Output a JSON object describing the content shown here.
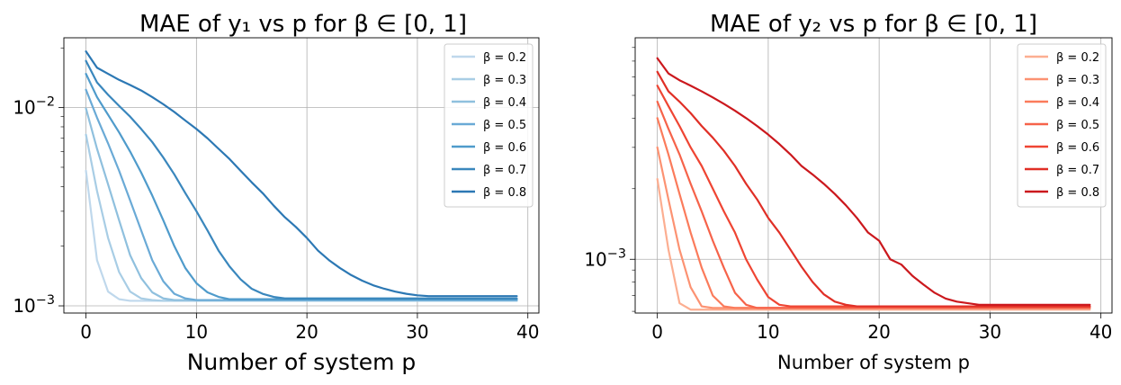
{
  "chart_data": [
    {
      "type": "line",
      "title": "MAE of y₁ vs p for β ∈ [0, 1]",
      "xlabel": "Number of system p",
      "ylabel": "",
      "yscale": "log",
      "xlim": [
        -2,
        41
      ],
      "ylim": [
        0.00092,
        0.0225
      ],
      "xticks": [
        0,
        10,
        20,
        30,
        40
      ],
      "yticks": [
        {
          "value": 0.001,
          "base": "10",
          "exp": "−3"
        },
        {
          "value": 0.01,
          "base": "10",
          "exp": "−2"
        }
      ],
      "grid": true,
      "legend_position": "top-right",
      "series": [
        {
          "name": "β = 0.2",
          "color": "#bfd8ec",
          "values": [
            0.0048,
            0.0017,
            0.00118,
            0.00108,
            0.00106,
            0.00106,
            0.00106,
            0.00106,
            0.00106,
            0.00106,
            0.00106,
            0.00106,
            0.00106,
            0.00106,
            0.00106,
            0.00106,
            0.00106,
            0.00106,
            0.00106,
            0.00106,
            0.00106,
            0.00106,
            0.00106,
            0.00106,
            0.00106,
            0.00106,
            0.00106,
            0.00106,
            0.00106,
            0.00106,
            0.00106,
            0.00106,
            0.00106,
            0.00106,
            0.00106,
            0.00106,
            0.00106,
            0.00106,
            0.00106,
            0.00106
          ]
        },
        {
          "name": "β = 0.3",
          "color": "#a8cde5",
          "values": [
            0.0073,
            0.0038,
            0.0022,
            0.00148,
            0.00118,
            0.00109,
            0.00107,
            0.00106,
            0.00106,
            0.00106,
            0.00106,
            0.00106,
            0.00106,
            0.00106,
            0.00106,
            0.00106,
            0.00106,
            0.00106,
            0.00106,
            0.00106,
            0.00106,
            0.00106,
            0.00106,
            0.00106,
            0.00106,
            0.00106,
            0.00106,
            0.00106,
            0.00106,
            0.00106,
            0.00106,
            0.00106,
            0.00106,
            0.00106,
            0.00106,
            0.00106,
            0.00106,
            0.00106,
            0.00106,
            0.00106
          ]
        },
        {
          "name": "β = 0.4",
          "color": "#8fc0de",
          "values": [
            0.0099,
            0.0062,
            0.0041,
            0.0027,
            0.0018,
            0.00138,
            0.00117,
            0.00109,
            0.00107,
            0.00107,
            0.00107,
            0.00107,
            0.00107,
            0.00107,
            0.00107,
            0.00107,
            0.00107,
            0.00107,
            0.00107,
            0.00107,
            0.00107,
            0.00107,
            0.00107,
            0.00107,
            0.00107,
            0.00107,
            0.00107,
            0.00107,
            0.00107,
            0.00107,
            0.00107,
            0.00107,
            0.00107,
            0.00107,
            0.00107,
            0.00107,
            0.00107,
            0.00107,
            0.00107,
            0.00107
          ]
        },
        {
          "name": "β = 0.5",
          "color": "#6aaad6",
          "values": [
            0.0123,
            0.0089,
            0.0066,
            0.0048,
            0.0034,
            0.0024,
            0.0017,
            0.00133,
            0.00115,
            0.00109,
            0.00107,
            0.00107,
            0.00107,
            0.00107,
            0.00107,
            0.00107,
            0.00107,
            0.00107,
            0.00107,
            0.00107,
            0.00107,
            0.00107,
            0.00107,
            0.00107,
            0.00107,
            0.00107,
            0.00107,
            0.00107,
            0.00107,
            0.00107,
            0.00107,
            0.00107,
            0.00107,
            0.00107,
            0.00107,
            0.00107,
            0.00107,
            0.00107,
            0.00107,
            0.00107
          ]
        },
        {
          "name": "β = 0.6",
          "color": "#4f9bcb",
          "values": [
            0.0148,
            0.0113,
            0.0092,
            0.0075,
            0.006,
            0.0047,
            0.0036,
            0.0027,
            0.002,
            0.00155,
            0.0013,
            0.00117,
            0.00111,
            0.00108,
            0.00108,
            0.00108,
            0.00108,
            0.00108,
            0.00108,
            0.00108,
            0.00108,
            0.00108,
            0.00108,
            0.00108,
            0.00108,
            0.00108,
            0.00108,
            0.00108,
            0.00108,
            0.00108,
            0.00108,
            0.00108,
            0.00108,
            0.00108,
            0.00108,
            0.00108,
            0.00108,
            0.00108,
            0.00108,
            0.00108
          ]
        },
        {
          "name": "β = 0.7",
          "color": "#3a87bd",
          "values": [
            0.0172,
            0.0134,
            0.0116,
            0.0102,
            0.009,
            0.0078,
            0.0067,
            0.0056,
            0.0046,
            0.0037,
            0.003,
            0.0024,
            0.0019,
            0.00158,
            0.00136,
            0.00122,
            0.00115,
            0.00111,
            0.00109,
            0.00109,
            0.00109,
            0.00109,
            0.00109,
            0.00109,
            0.00109,
            0.00109,
            0.00109,
            0.00109,
            0.00109,
            0.00109,
            0.00109,
            0.00109,
            0.00109,
            0.00109,
            0.00109,
            0.00109,
            0.00109,
            0.00109,
            0.00109,
            0.00109
          ]
        },
        {
          "name": "β = 0.8",
          "color": "#2c78b4",
          "values": [
            0.0192,
            0.0159,
            0.0148,
            0.0138,
            0.013,
            0.0122,
            0.0113,
            0.0104,
            0.0095,
            0.0086,
            0.0078,
            0.007,
            0.0062,
            0.0055,
            0.0048,
            0.0042,
            0.0037,
            0.0032,
            0.0028,
            0.0025,
            0.0022,
            0.0019,
            0.0017,
            0.00155,
            0.00143,
            0.00134,
            0.00127,
            0.00122,
            0.00118,
            0.00115,
            0.00113,
            0.00112,
            0.00112,
            0.00112,
            0.00112,
            0.00112,
            0.00112,
            0.00112,
            0.00112,
            0.00112
          ]
        }
      ]
    },
    {
      "type": "line",
      "title": "MAE of y₂ vs p for β ∈ [0, 1]",
      "xlabel": "Number of system p",
      "ylabel": "",
      "yscale": "log",
      "xlim": [
        -2,
        41
      ],
      "ylim": [
        0.00059,
        0.0088
      ],
      "xticks": [
        0,
        10,
        20,
        30,
        40
      ],
      "yticks": [
        {
          "value": 0.001,
          "base": "10",
          "exp": "−3"
        }
      ],
      "grid": true,
      "legend_position": "top-right",
      "series": [
        {
          "name": "β = 0.2",
          "color": "#fcae91",
          "values": [
            0.0022,
            0.0011,
            0.00065,
            0.00061,
            0.00061,
            0.00061,
            0.00061,
            0.00061,
            0.00061,
            0.00061,
            0.00061,
            0.00061,
            0.00061,
            0.00061,
            0.00061,
            0.00061,
            0.00061,
            0.00061,
            0.00061,
            0.00061,
            0.00061,
            0.00061,
            0.00061,
            0.00061,
            0.00061,
            0.00061,
            0.00061,
            0.00061,
            0.00061,
            0.00061,
            0.00061,
            0.00061,
            0.00061,
            0.00061,
            0.00061,
            0.00061,
            0.00061,
            0.00061,
            0.00061,
            0.00061
          ]
        },
        {
          "name": "β = 0.3",
          "color": "#fc9272",
          "values": [
            0.003,
            0.0018,
            0.0011,
            0.00076,
            0.00063,
            0.00062,
            0.00062,
            0.00062,
            0.00062,
            0.00062,
            0.00062,
            0.00062,
            0.00062,
            0.00062,
            0.00062,
            0.00062,
            0.00062,
            0.00062,
            0.00062,
            0.00062,
            0.00062,
            0.00062,
            0.00062,
            0.00062,
            0.00062,
            0.00062,
            0.00062,
            0.00062,
            0.00062,
            0.00062,
            0.00062,
            0.00062,
            0.00062,
            0.00062,
            0.00062,
            0.00062,
            0.00062,
            0.00062,
            0.00062,
            0.00062
          ]
        },
        {
          "name": "β = 0.4",
          "color": "#fb7b5b",
          "values": [
            0.004,
            0.0028,
            0.0019,
            0.0013,
            0.00092,
            0.0007,
            0.00063,
            0.00062,
            0.00062,
            0.00062,
            0.00062,
            0.00062,
            0.00062,
            0.00062,
            0.00062,
            0.00062,
            0.00062,
            0.00062,
            0.00062,
            0.00062,
            0.00062,
            0.00062,
            0.00062,
            0.00062,
            0.00062,
            0.00062,
            0.00062,
            0.00062,
            0.00062,
            0.00062,
            0.00062,
            0.00062,
            0.00062,
            0.00062,
            0.00062,
            0.00062,
            0.00062,
            0.00062,
            0.00062,
            0.00062
          ]
        },
        {
          "name": "β = 0.5",
          "color": "#f6634a",
          "values": [
            0.0047,
            0.0036,
            0.0028,
            0.0021,
            0.0016,
            0.0012,
            0.00092,
            0.00072,
            0.00064,
            0.00062,
            0.00062,
            0.00062,
            0.00062,
            0.00062,
            0.00062,
            0.00062,
            0.00062,
            0.00062,
            0.00062,
            0.00062,
            0.00062,
            0.00062,
            0.00062,
            0.00062,
            0.00062,
            0.00062,
            0.00062,
            0.00062,
            0.00062,
            0.00062,
            0.00062,
            0.00062,
            0.00062,
            0.00062,
            0.00062,
            0.00062,
            0.00062,
            0.00062,
            0.00062,
            0.00062
          ]
        },
        {
          "name": "β = 0.6",
          "color": "#ef4533",
          "values": [
            0.0055,
            0.0045,
            0.0037,
            0.003,
            0.0025,
            0.002,
            0.0016,
            0.0013,
            0.001,
            0.00082,
            0.00069,
            0.00064,
            0.00063,
            0.00063,
            0.00063,
            0.00063,
            0.00063,
            0.00063,
            0.00063,
            0.00063,
            0.00063,
            0.00063,
            0.00063,
            0.00063,
            0.00063,
            0.00063,
            0.00063,
            0.00063,
            0.00063,
            0.00063,
            0.00063,
            0.00063,
            0.00063,
            0.00063,
            0.00063,
            0.00063,
            0.00063,
            0.00063,
            0.00063,
            0.00063
          ]
        },
        {
          "name": "β = 0.7",
          "color": "#e02f26",
          "values": [
            0.0063,
            0.0052,
            0.0047,
            0.0042,
            0.0037,
            0.0033,
            0.0029,
            0.0025,
            0.0021,
            0.0018,
            0.0015,
            0.0013,
            0.0011,
            0.00093,
            0.0008,
            0.00071,
            0.00066,
            0.00064,
            0.00063,
            0.00063,
            0.00063,
            0.00063,
            0.00063,
            0.00063,
            0.00063,
            0.00063,
            0.00063,
            0.00063,
            0.00063,
            0.00063,
            0.00063,
            0.00063,
            0.00063,
            0.00063,
            0.00063,
            0.00063,
            0.00063,
            0.00063,
            0.00063,
            0.00063
          ]
        },
        {
          "name": "β = 0.8",
          "color": "#cb181d",
          "values": [
            0.0072,
            0.0062,
            0.0058,
            0.0055,
            0.0052,
            0.0049,
            0.0046,
            0.0043,
            0.004,
            0.0037,
            0.0034,
            0.0031,
            0.0028,
            0.0025,
            0.0023,
            0.0021,
            0.0019,
            0.0017,
            0.0015,
            0.0013,
            0.0012,
            0.001,
            0.00095,
            0.00085,
            0.00078,
            0.00072,
            0.00068,
            0.00066,
            0.00065,
            0.00064,
            0.00064,
            0.00064,
            0.00064,
            0.00064,
            0.00064,
            0.00064,
            0.00064,
            0.00064,
            0.00064,
            0.00064
          ]
        }
      ]
    }
  ]
}
